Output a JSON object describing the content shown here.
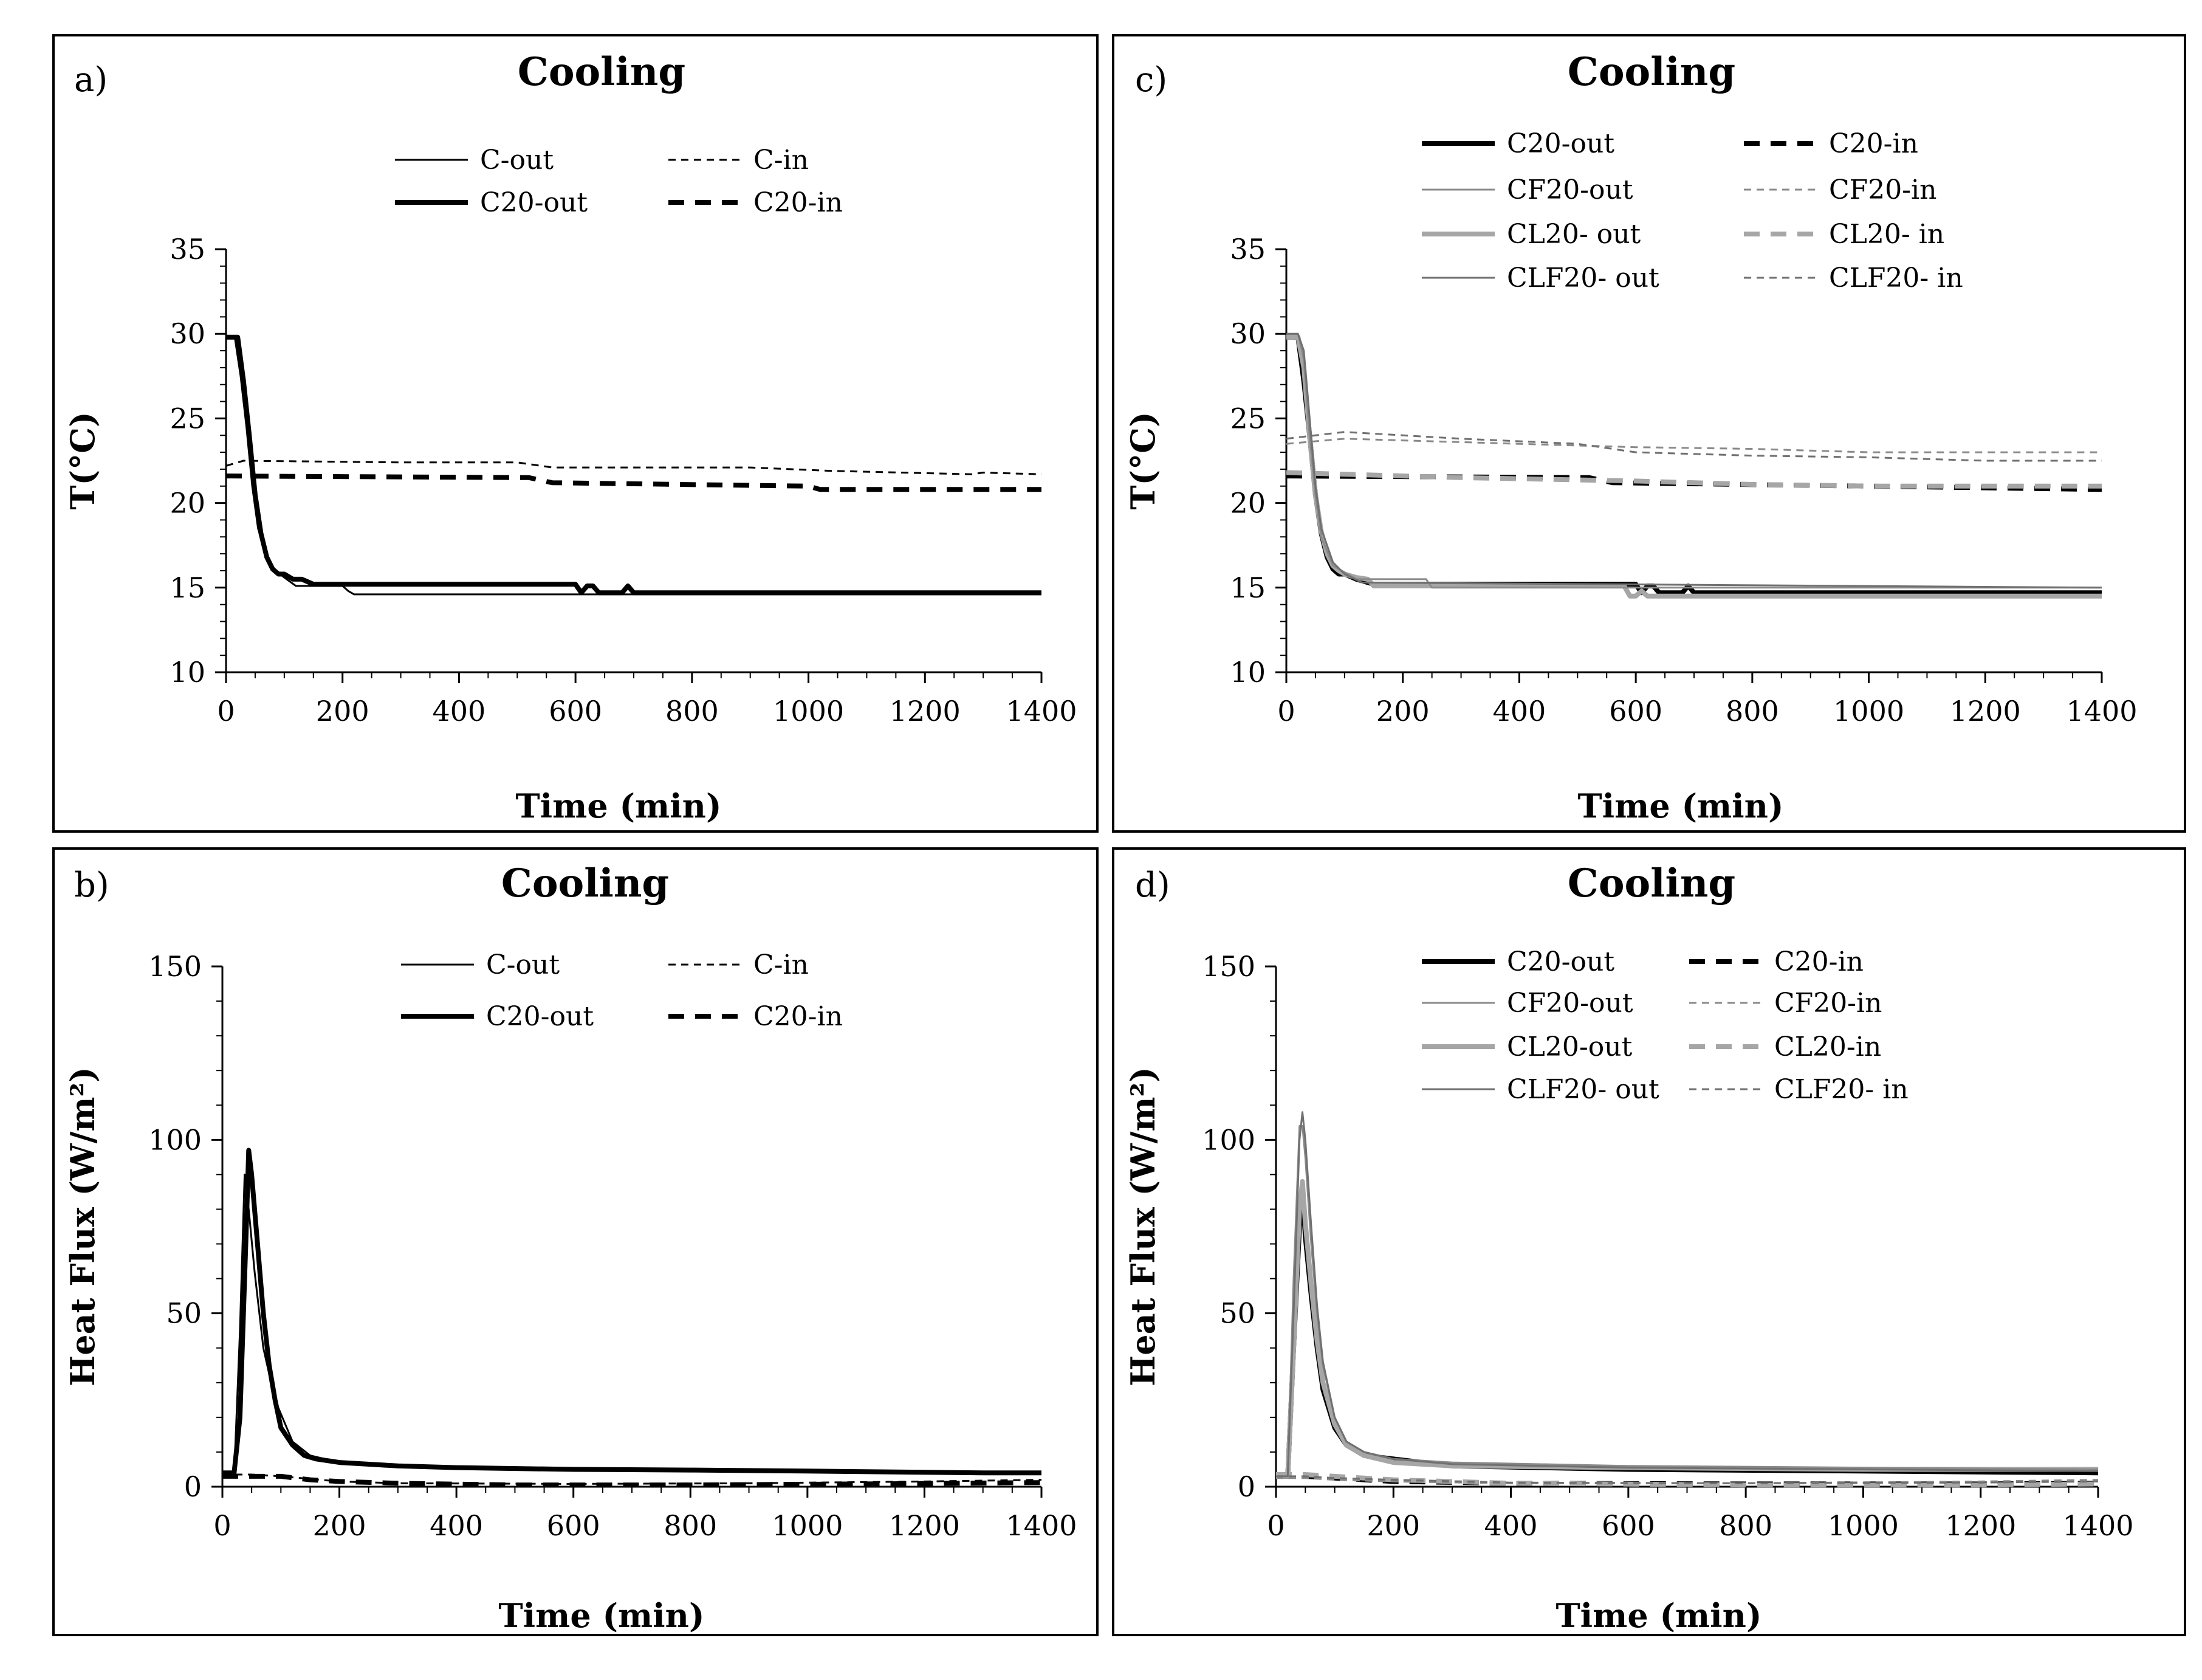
{
  "chart_data": [
    {
      "type": "line",
      "panel": "a)",
      "title": "Cooling",
      "xlabel": "Time (min)",
      "ylabel": "T(°C)",
      "xlim": [
        0,
        1400
      ],
      "ylim": [
        10,
        35
      ],
      "xticks": [
        0,
        200,
        400,
        600,
        800,
        1000,
        1200,
        1400
      ],
      "yticks": [
        10,
        15,
        20,
        25,
        30,
        35
      ],
      "legend_position": "top",
      "series": [
        {
          "name": "C-out",
          "color": "#000000",
          "style": "thin-solid",
          "x": [
            0,
            15,
            25,
            35,
            45,
            55,
            70,
            85,
            100,
            120,
            200,
            210,
            220,
            1400
          ],
          "y": [
            29.8,
            29.8,
            27.5,
            24.5,
            21,
            18.5,
            16.8,
            16,
            15.6,
            15.1,
            15.1,
            14.8,
            14.6,
            14.6
          ]
        },
        {
          "name": "C-in",
          "color": "#000000",
          "style": "thin-dashed",
          "x": [
            0,
            30,
            300,
            500,
            560,
            900,
            1040,
            1280,
            1300,
            1400
          ],
          "y": [
            22.2,
            22.5,
            22.4,
            22.4,
            22.1,
            22.1,
            21.9,
            21.7,
            21.8,
            21.7
          ]
        },
        {
          "name": "C20-out",
          "color": "#000000",
          "style": "thick-solid",
          "x": [
            0,
            20,
            30,
            40,
            50,
            60,
            70,
            80,
            90,
            100,
            115,
            130,
            150,
            600,
            610,
            620,
            630,
            640,
            680,
            690,
            700,
            1400
          ],
          "y": [
            29.8,
            29.8,
            27.2,
            24,
            20.5,
            18.2,
            16.8,
            16.1,
            15.8,
            15.8,
            15.5,
            15.5,
            15.2,
            15.2,
            14.7,
            15.1,
            15.1,
            14.7,
            14.7,
            15.1,
            14.7,
            14.7
          ]
        },
        {
          "name": "C20-in",
          "color": "#000000",
          "style": "thick-dashed",
          "x": [
            0,
            520,
            560,
            1000,
            1020,
            1400
          ],
          "y": [
            21.6,
            21.5,
            21.2,
            21.0,
            20.8,
            20.8
          ]
        }
      ]
    },
    {
      "type": "line",
      "panel": "b)",
      "title": "Cooling",
      "xlabel": "Time (min)",
      "ylabel": "Heat Flux (W/m²)",
      "xlim": [
        0,
        1400
      ],
      "ylim": [
        0,
        150
      ],
      "xticks": [
        0,
        200,
        400,
        600,
        800,
        1000,
        1200,
        1400
      ],
      "yticks": [
        0,
        50,
        100,
        150
      ],
      "legend_position": "top",
      "series": [
        {
          "name": "C-out",
          "color": "#000000",
          "style": "thin-solid",
          "x": [
            0,
            20,
            30,
            38,
            45,
            55,
            70,
            90,
            120,
            150,
            200,
            300,
            600,
            1000,
            1300,
            1400
          ],
          "y": [
            3,
            3,
            45,
            90,
            80,
            62,
            40,
            25,
            13,
            9,
            7,
            6,
            5,
            4.5,
            4,
            4
          ]
        },
        {
          "name": "C-in",
          "color": "#000000",
          "style": "thin-dashed",
          "x": [
            0,
            50,
            100,
            200,
            300,
            600,
            900,
            1200,
            1400
          ],
          "y": [
            3.5,
            3.5,
            3,
            1.5,
            1,
            0.8,
            1,
            1.5,
            2
          ]
        },
        {
          "name": "C20-out",
          "color": "#000000",
          "style": "thick-solid",
          "x": [
            0,
            20,
            30,
            40,
            45,
            50,
            60,
            70,
            80,
            90,
            100,
            120,
            140,
            160,
            200,
            300,
            400,
            600,
            800,
            1000,
            1300,
            1400
          ],
          "y": [
            4,
            4,
            20,
            70,
            97,
            90,
            70,
            50,
            35,
            25,
            17,
            12,
            9,
            8,
            7,
            6,
            5.5,
            5,
            4.8,
            4.5,
            4,
            4
          ]
        },
        {
          "name": "C20-in",
          "color": "#000000",
          "style": "thick-dashed",
          "x": [
            0,
            50,
            100,
            150,
            200,
            300,
            500,
            800,
            1100,
            1400
          ],
          "y": [
            3,
            3,
            3,
            2,
            1.5,
            1,
            0.5,
            0.5,
            0.8,
            1.2
          ]
        }
      ]
    },
    {
      "type": "line",
      "panel": "c)",
      "title": "Cooling",
      "xlabel": "Time (min)",
      "ylabel": "T(°C)",
      "xlim": [
        0,
        1400
      ],
      "ylim": [
        10,
        35
      ],
      "xticks": [
        0,
        200,
        400,
        600,
        800,
        1000,
        1200,
        1400
      ],
      "yticks": [
        10,
        15,
        20,
        25,
        30,
        35
      ],
      "legend_position": "top",
      "series": [
        {
          "name": "C20-out",
          "color": "#000000",
          "style": "thick-solid",
          "x": [
            0,
            20,
            30,
            40,
            50,
            60,
            70,
            80,
            90,
            100,
            120,
            150,
            600,
            610,
            620,
            630,
            640,
            680,
            690,
            700,
            1400
          ],
          "y": [
            29.8,
            29.8,
            27.2,
            24,
            20.5,
            18.2,
            16.8,
            16.1,
            15.8,
            15.8,
            15.5,
            15.2,
            15.2,
            14.7,
            15.1,
            15.1,
            14.7,
            14.7,
            15.1,
            14.7,
            14.7
          ]
        },
        {
          "name": "C20-in",
          "color": "#000000",
          "style": "thick-dashed",
          "x": [
            0,
            520,
            560,
            1000,
            1400
          ],
          "y": [
            21.6,
            21.5,
            21.2,
            21.0,
            20.8
          ]
        },
        {
          "name": "CF20-out",
          "color": "#8a8a8a",
          "style": "thin-solid",
          "x": [
            0,
            20,
            30,
            40,
            50,
            60,
            80,
            100,
            120,
            240,
            250,
            1400
          ],
          "y": [
            30,
            30,
            28.5,
            24,
            20.5,
            18,
            16.3,
            15.9,
            15.5,
            15.5,
            15,
            15
          ]
        },
        {
          "name": "CF20-in",
          "color": "#8a8a8a",
          "style": "thin-dashed",
          "x": [
            0,
            100,
            400,
            600,
            800,
            1000,
            1200,
            1400
          ],
          "y": [
            23.5,
            23.8,
            23.5,
            23.3,
            23.2,
            23.0,
            23.0,
            23.0
          ]
        },
        {
          "name": "CL20- out",
          "color": "#a6a6a6",
          "style": "thick-solid",
          "x": [
            0,
            20,
            30,
            40,
            50,
            60,
            70,
            80,
            90,
            100,
            120,
            140,
            150,
            580,
            590,
            600,
            610,
            620,
            1400
          ],
          "y": [
            29.8,
            29.8,
            28,
            24,
            20.5,
            18.3,
            17,
            16.3,
            16,
            15.8,
            15.6,
            15.5,
            15.1,
            15.1,
            14.5,
            14.5,
            14.8,
            14.5,
            14.5
          ]
        },
        {
          "name": "CL20- in",
          "color": "#a6a6a6",
          "style": "thick-dashed",
          "x": [
            0,
            300,
            600,
            800,
            1000,
            1400
          ],
          "y": [
            21.8,
            21.5,
            21.3,
            21.1,
            21.0,
            21.0
          ]
        },
        {
          "name": "CLF20- out",
          "color": "#707070",
          "style": "thin-solid",
          "x": [
            0,
            20,
            30,
            40,
            50,
            60,
            80,
            100,
            130,
            1400
          ],
          "y": [
            30,
            30,
            29,
            25,
            21,
            18.5,
            16.5,
            15.8,
            15.3,
            15
          ]
        },
        {
          "name": "CLF20- in",
          "color": "#707070",
          "style": "thin-dashed",
          "x": [
            0,
            100,
            300,
            500,
            600,
            800,
            1000,
            1200,
            1400
          ],
          "y": [
            23.8,
            24.2,
            23.8,
            23.5,
            23.0,
            22.8,
            22.7,
            22.5,
            22.5
          ]
        }
      ]
    },
    {
      "type": "line",
      "panel": "d)",
      "title": "Cooling",
      "xlabel": "Time (min)",
      "ylabel": "Heat Flux (W/m²)",
      "xlim": [
        0,
        1400
      ],
      "ylim": [
        0,
        150
      ],
      "xticks": [
        0,
        200,
        400,
        600,
        800,
        1000,
        1200,
        1400
      ],
      "yticks": [
        0,
        50,
        100,
        150
      ],
      "legend_position": "top",
      "series": [
        {
          "name": "C20-out",
          "color": "#000000",
          "style": "thick-solid",
          "x": [
            0,
            20,
            30,
            40,
            45,
            50,
            60,
            70,
            80,
            100,
            120,
            150,
            200,
            300,
            600,
            1000,
            1400
          ],
          "y": [
            3,
            3,
            40,
            75,
            85,
            72,
            55,
            40,
            28,
            17,
            12,
            9,
            8,
            6,
            5,
            4.5,
            4
          ]
        },
        {
          "name": "C20-in",
          "color": "#000000",
          "style": "thick-dashed",
          "x": [
            0,
            50,
            100,
            150,
            200,
            400,
            800,
            1200,
            1400
          ],
          "y": [
            3,
            3,
            2.5,
            2,
            1.5,
            1,
            0.8,
            0.8,
            1
          ]
        },
        {
          "name": "CF20-out",
          "color": "#8a8a8a",
          "style": "thin-solid",
          "x": [
            0,
            20,
            30,
            40,
            45,
            50,
            60,
            70,
            80,
            100,
            120,
            150,
            200,
            300,
            600,
            1000,
            1400
          ],
          "y": [
            3,
            3,
            60,
            104,
            104,
            95,
            70,
            50,
            35,
            20,
            13,
            10,
            8,
            7,
            6,
            5.5,
            5
          ]
        },
        {
          "name": "CF20-in",
          "color": "#8a8a8a",
          "style": "thin-dashed",
          "x": [
            0,
            50,
            100,
            200,
            400,
            800,
            1200,
            1400
          ],
          "y": [
            2.5,
            2.5,
            2,
            1.5,
            1,
            1,
            1.5,
            2
          ]
        },
        {
          "name": "CL20-out",
          "color": "#a6a6a6",
          "style": "thick-solid",
          "x": [
            0,
            20,
            30,
            40,
            45,
            50,
            60,
            70,
            80,
            100,
            120,
            150,
            200,
            300,
            600,
            1000,
            1400
          ],
          "y": [
            3,
            3,
            40,
            80,
            88,
            76,
            58,
            42,
            30,
            18,
            12,
            9,
            7,
            6,
            5.5,
            5,
            5
          ]
        },
        {
          "name": "CL20-in",
          "color": "#a6a6a6",
          "style": "thick-dashed",
          "x": [
            0,
            50,
            100,
            200,
            400,
            800,
            1200,
            1400
          ],
          "y": [
            3.5,
            3.5,
            3,
            2,
            1,
            0.5,
            0.5,
            0.8
          ]
        },
        {
          "name": "CLF20- out",
          "color": "#707070",
          "style": "thin-solid",
          "x": [
            0,
            20,
            30,
            40,
            45,
            50,
            60,
            70,
            80,
            100,
            120,
            150,
            200,
            300,
            600,
            1000,
            1400
          ],
          "y": [
            3,
            3,
            50,
            100,
            108,
            100,
            75,
            52,
            36,
            20,
            13,
            10,
            8,
            6.5,
            5.5,
            5,
            4.5
          ]
        },
        {
          "name": "CLF20- in",
          "color": "#707070",
          "style": "thin-dashed",
          "x": [
            0,
            50,
            100,
            200,
            400,
            800,
            1200,
            1400
          ],
          "y": [
            3,
            3,
            2.5,
            2,
            1.2,
            1,
            1.2,
            1.5
          ]
        }
      ]
    }
  ]
}
